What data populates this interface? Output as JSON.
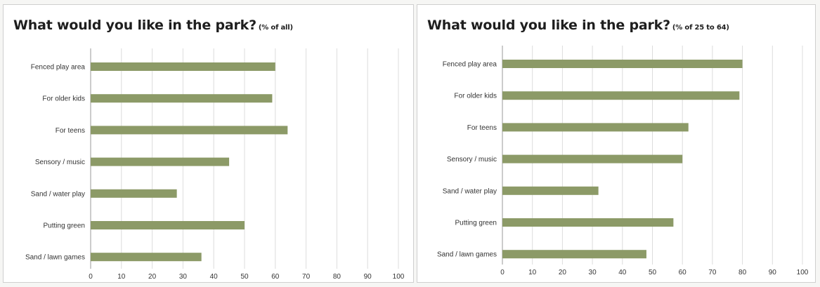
{
  "chart_data": [
    {
      "type": "bar",
      "orientation": "horizontal",
      "title": "What would you like in the park?",
      "subtitle": "(% of all)",
      "categories": [
        "Fenced play area",
        "For older kids",
        "For teens",
        "Sensory / music",
        "Sand / water play",
        "Putting green",
        "Sand / lawn games"
      ],
      "values": [
        60,
        59,
        64,
        45,
        28,
        50,
        36
      ],
      "xlim": [
        0,
        100
      ],
      "xticks": [
        "0",
        "10",
        "20",
        "30",
        "40",
        "50",
        "60",
        "70",
        "80",
        "90",
        "100"
      ],
      "grid": true,
      "bar_color": "#8c9a67"
    },
    {
      "type": "bar",
      "orientation": "horizontal",
      "title": "What would you like in the park?",
      "subtitle": "(% of 25 to 64)",
      "categories": [
        "Fenced play area",
        "For older kids",
        "For teens",
        "Sensory / music",
        "Sand / water play",
        "Putting green",
        "Sand / lawn games"
      ],
      "values": [
        80,
        79,
        62,
        60,
        32,
        57,
        48
      ],
      "xlim": [
        0,
        100
      ],
      "xticks": [
        "0",
        "10",
        "20",
        "30",
        "40",
        "50",
        "60",
        "70",
        "80",
        "90",
        "100"
      ],
      "grid": true,
      "bar_color": "#8c9a67"
    }
  ]
}
